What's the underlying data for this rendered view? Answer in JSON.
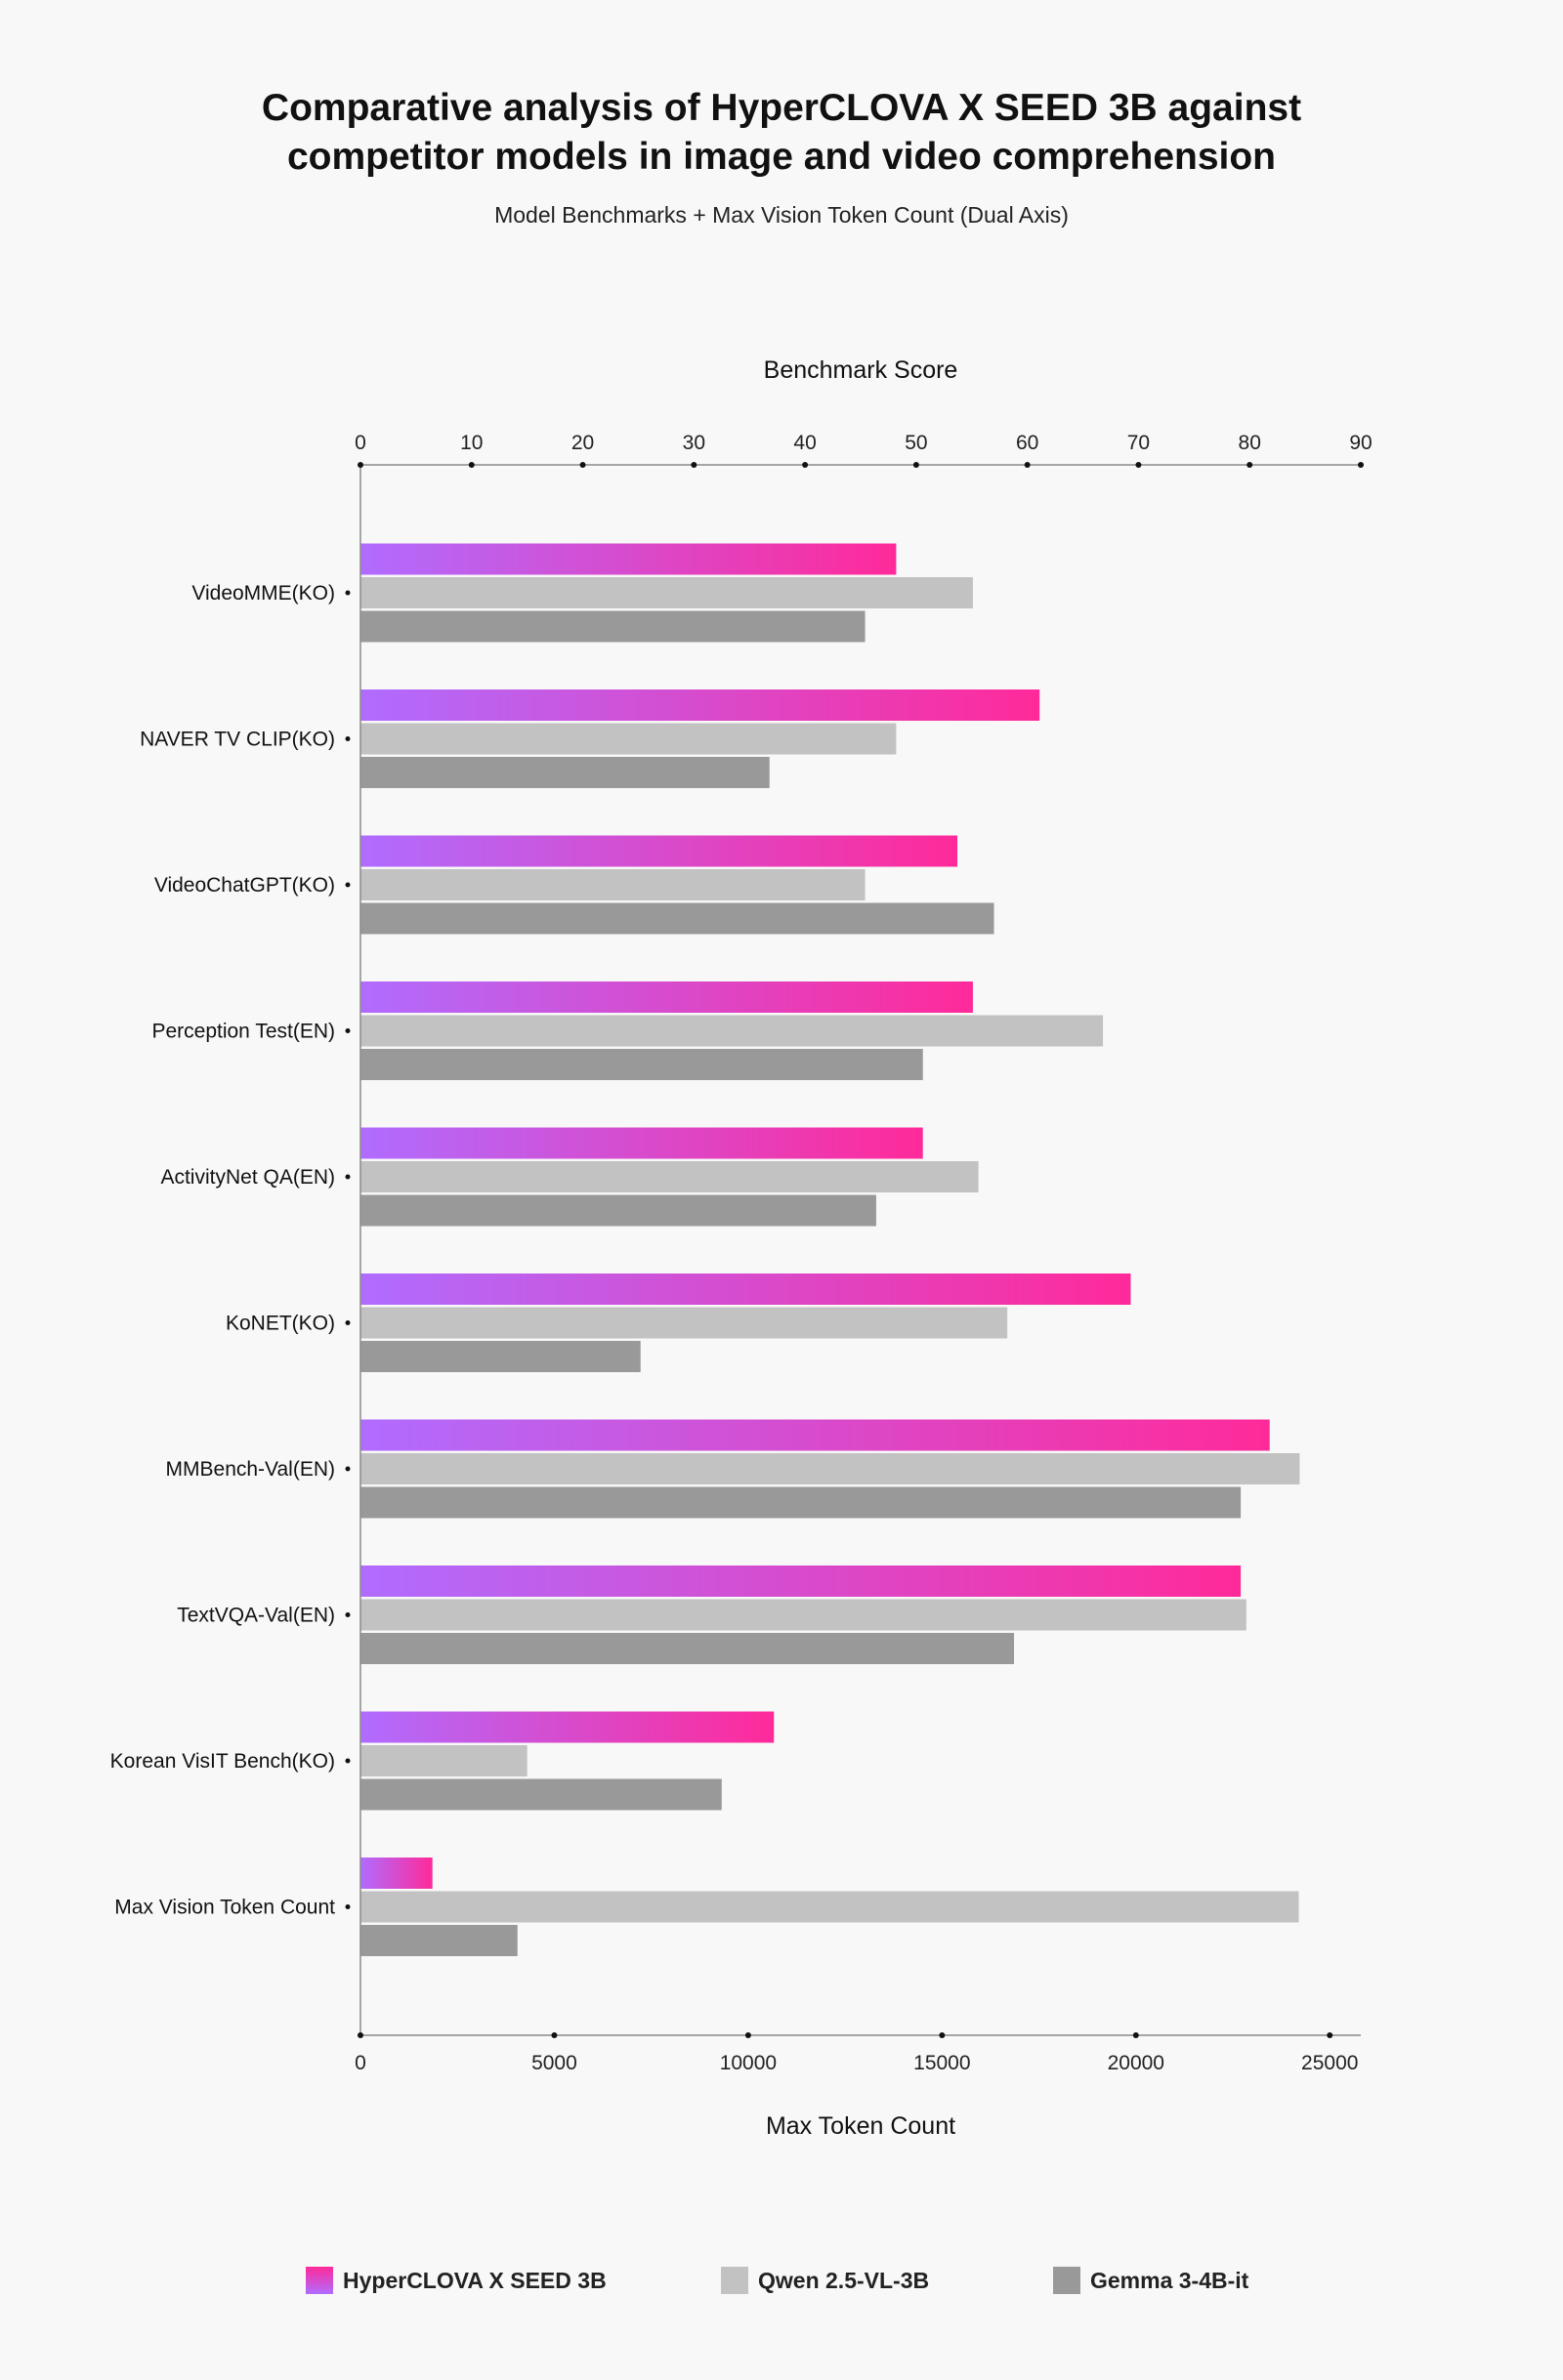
{
  "title_lines": [
    "Comparative analysis of HyperCLOVA X SEED 3B against",
    "competitor models in image and video comprehension"
  ],
  "subtitle": "Model Benchmarks + Max Vision Token Count (Dual Axis)",
  "colors": {
    "hyperclova_gradient": [
      "#b06cff",
      "#ff2a9a"
    ],
    "qwen": "#c2c2c2",
    "gemma": "#999999",
    "axis": "#8a8a8a"
  },
  "chart_data": {
    "type": "bar",
    "orientation": "horizontal",
    "categories": [
      "VideoMME(KO)",
      "NAVER TV CLIP(KO)",
      "VideoChatGPT(KO)",
      "Perception Test(EN)",
      "ActivityNet QA(EN)",
      "KoNET(KO)",
      "MMBench-Val(EN)",
      "TextVQA-Val(EN)",
      "Korean VisIT Bench(KO)",
      "Max Vision Token Count"
    ],
    "series": [
      {
        "name": "HyperCLOVA X SEED 3B",
        "values": [
          48.2,
          61.1,
          53.7,
          55.1,
          50.6,
          69.3,
          81.8,
          79.2,
          37.2,
          1856
        ],
        "style": "gradient"
      },
      {
        "name": "Qwen 2.5-VL-3B",
        "values": [
          55.1,
          48.2,
          45.4,
          66.8,
          55.6,
          58.2,
          84.5,
          79.7,
          15.0,
          24200
        ],
        "style": "qwen"
      },
      {
        "name": "Gemma 3-4B-it",
        "values": [
          45.4,
          36.8,
          57.0,
          50.6,
          46.4,
          25.2,
          79.2,
          58.8,
          32.5,
          4050
        ],
        "style": "gemma"
      }
    ],
    "top_axis": {
      "label": "Benchmark Score",
      "range": [
        0,
        90
      ],
      "ticks": [
        0,
        10,
        20,
        30,
        40,
        50,
        60,
        70,
        80,
        90
      ]
    },
    "bottom_axis": {
      "label": "Max Token Count",
      "range": [
        0,
        25800
      ],
      "ticks": [
        0,
        5000,
        10000,
        15000,
        20000,
        25000
      ]
    },
    "bottom_axis_categories": [
      "Max Vision Token Count"
    ],
    "legend_position": "bottom"
  }
}
